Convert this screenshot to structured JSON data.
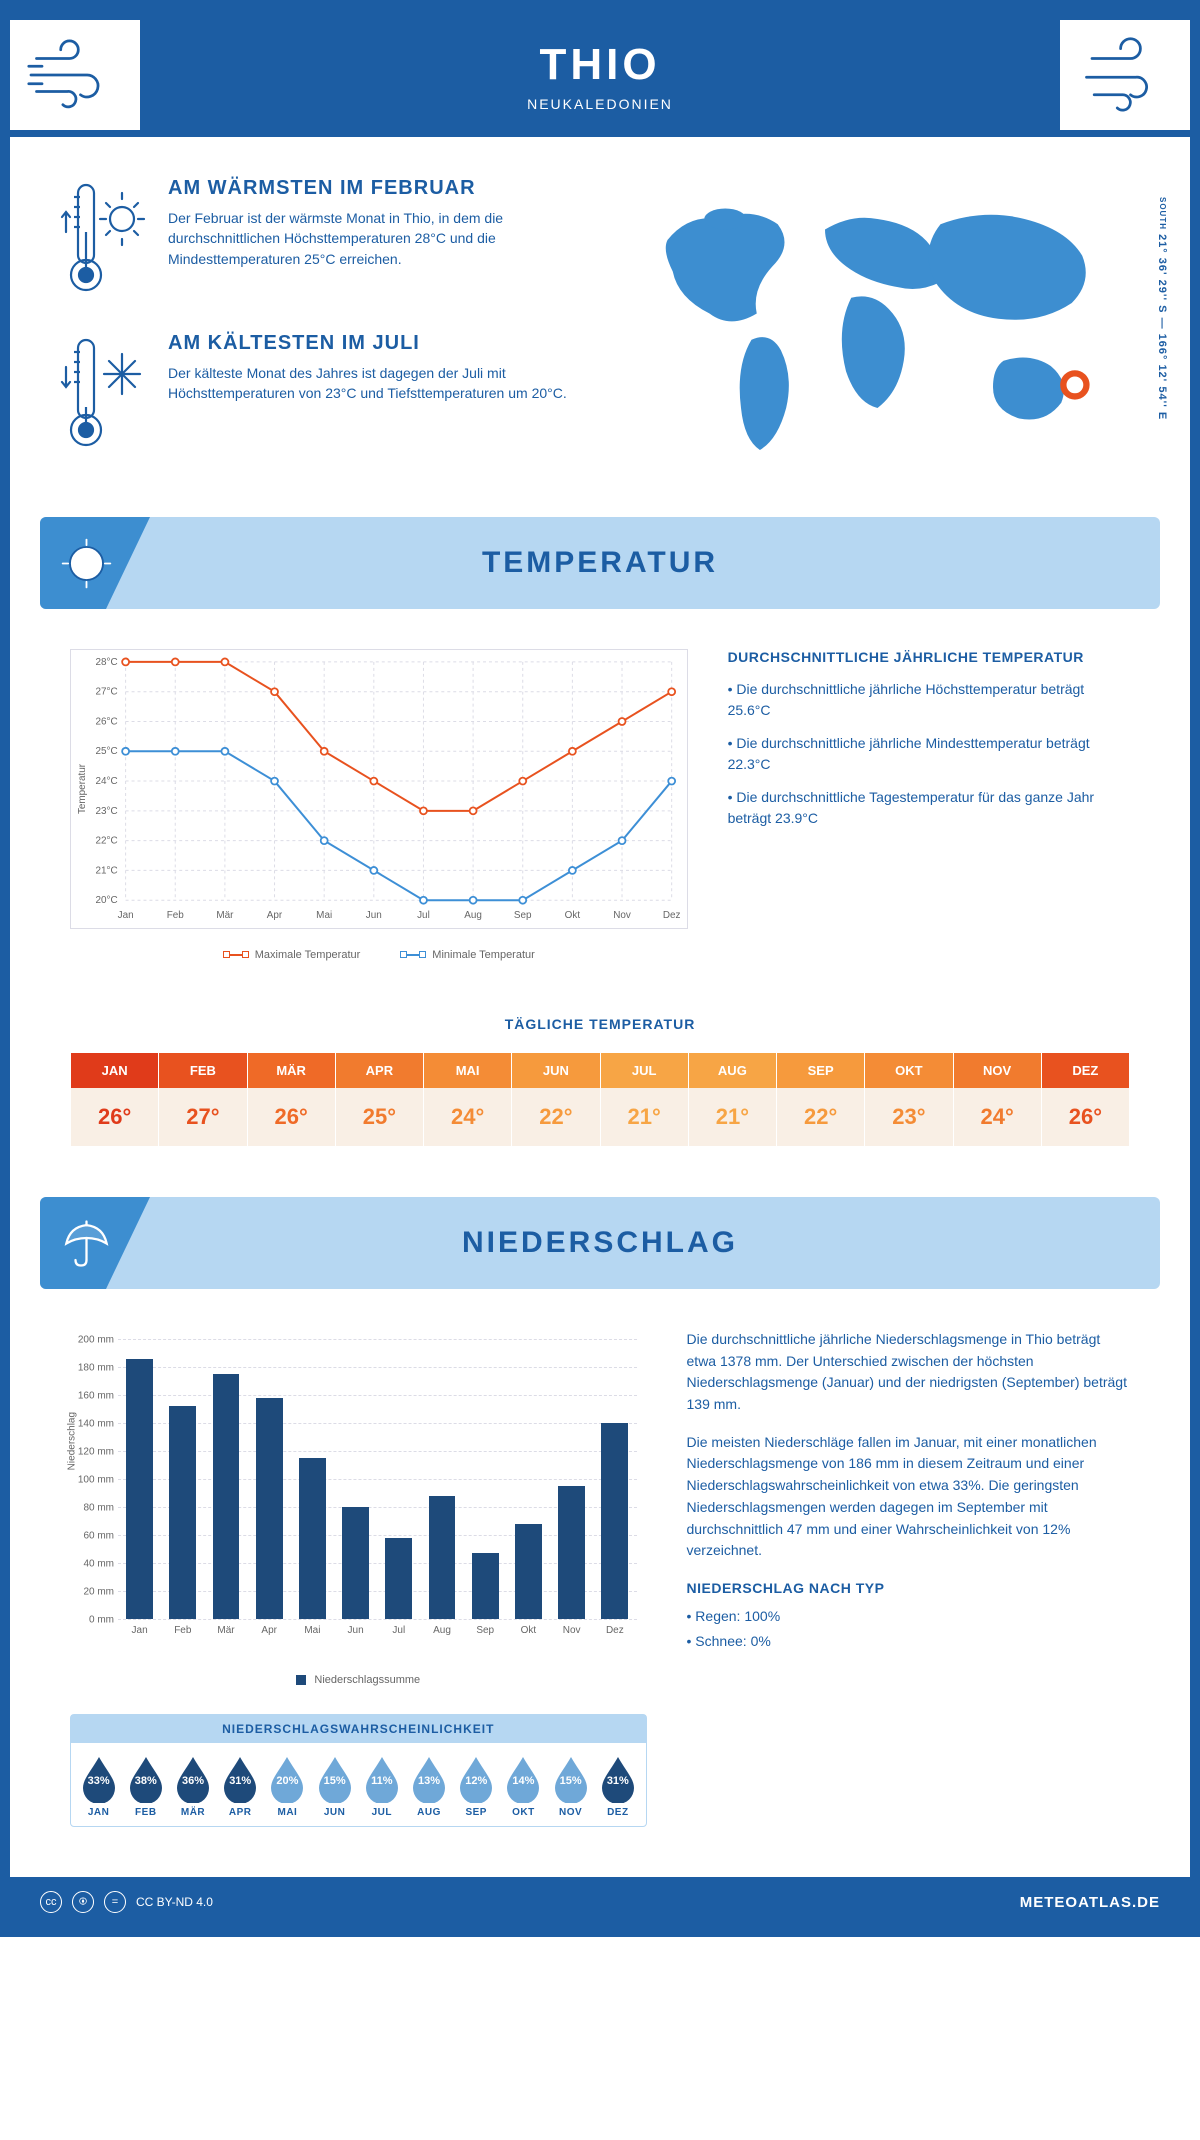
{
  "header": {
    "title": "THIO",
    "subtitle": "NEUKALEDONIEN"
  },
  "coords": {
    "south_label": "SOUTH",
    "text": "21° 36' 29'' S — 166° 12' 54'' E"
  },
  "facts": {
    "warm": {
      "title": "AM WÄRMSTEN IM FEBRUAR",
      "text": "Der Februar ist der wärmste Monat in Thio, in dem die durchschnittlichen Höchsttemperaturen 28°C und die Mindesttemperaturen 25°C erreichen."
    },
    "cold": {
      "title": "AM KÄLTESTEN IM JULI",
      "text": "Der kälteste Monat des Jahres ist dagegen der Juli mit Höchsttemperaturen von 23°C und Tiefsttemperaturen um 20°C."
    }
  },
  "banners": {
    "temp": "TEMPERATUR",
    "precip": "NIEDERSCHLAG"
  },
  "months": [
    "Jan",
    "Feb",
    "Mär",
    "Apr",
    "Mai",
    "Jun",
    "Jul",
    "Aug",
    "Sep",
    "Okt",
    "Nov",
    "Dez"
  ],
  "months_upper": [
    "JAN",
    "FEB",
    "MÄR",
    "APR",
    "MAI",
    "JUN",
    "JUL",
    "AUG",
    "SEP",
    "OKT",
    "NOV",
    "DEZ"
  ],
  "temp_chart": {
    "type": "line",
    "ylim": [
      20,
      28
    ],
    "ytick_step": 1,
    "y_unit": "°C",
    "yaxis_title": "Temperatur",
    "series": {
      "max": {
        "label": "Maximale Temperatur",
        "color": "#e8521f",
        "values": [
          28,
          28,
          28,
          27,
          25,
          24,
          23,
          23,
          24,
          25,
          26,
          27
        ]
      },
      "min": {
        "label": "Minimale Temperatur",
        "color": "#3d8fd6",
        "values": [
          25,
          25,
          25,
          24,
          22,
          21,
          20,
          20,
          20,
          21,
          22,
          24
        ]
      }
    },
    "grid_color": "#dcdce6",
    "background_color": "#ffffff"
  },
  "temp_desc": {
    "title": "DURCHSCHNITTLICHE JÄHRLICHE TEMPERATUR",
    "bullets": [
      "• Die durchschnittliche jährliche Höchsttemperatur beträgt 25.6°C",
      "• Die durchschnittliche jährliche Mindesttemperatur beträgt 22.3°C",
      "• Die durchschnittliche Tagestemperatur für das ganze Jahr beträgt 23.9°C"
    ]
  },
  "daily_temp": {
    "title": "TÄGLICHE TEMPERATUR",
    "values": [
      "26°",
      "27°",
      "26°",
      "25°",
      "24°",
      "22°",
      "21°",
      "21°",
      "22°",
      "23°",
      "24°",
      "26°"
    ],
    "header_colors": [
      "#e03b1a",
      "#e8521f",
      "#ef6a27",
      "#f17b2e",
      "#f48c36",
      "#f69a3d",
      "#f7a545",
      "#f7a545",
      "#f69a3d",
      "#f48c36",
      "#f17b2e",
      "#e8521f"
    ],
    "cell_bg": "#f9efe5",
    "cell_text_colors": [
      "#e03b1a",
      "#e8521f",
      "#ef6a27",
      "#f17b2e",
      "#f48c36",
      "#f69a3d",
      "#f7a545",
      "#f7a545",
      "#f69a3d",
      "#f48c36",
      "#f17b2e",
      "#e8521f"
    ]
  },
  "precip_chart": {
    "type": "bar",
    "yaxis_title": "Niederschlag",
    "ylim": [
      0,
      200
    ],
    "ytick_step": 20,
    "y_unit": " mm",
    "values": [
      186,
      152,
      175,
      158,
      115,
      80,
      58,
      88,
      47,
      68,
      95,
      140
    ],
    "bar_color": "#1e4a7a",
    "legend_label": "Niederschlagssumme",
    "grid_color": "#dcdce6"
  },
  "precip_desc": {
    "p1": "Die durchschnittliche jährliche Niederschlagsmenge in Thio beträgt etwa 1378 mm. Der Unterschied zwischen der höchsten Niederschlagsmenge (Januar) und der niedrigsten (September) beträgt 139 mm.",
    "p2": "Die meisten Niederschläge fallen im Januar, mit einer monatlichen Niederschlagsmenge von 186 mm in diesem Zeitraum und einer Niederschlagswahrscheinlichkeit von etwa 33%. Die geringsten Niederschlagsmengen werden dagegen im September mit durchschnittlich 47 mm und einer Wahrscheinlichkeit von 12% verzeichnet.",
    "type_title": "NIEDERSCHLAG NACH TYP",
    "type_bullets": [
      "• Regen: 100%",
      "• Schnee: 0%"
    ]
  },
  "prob": {
    "title": "NIEDERSCHLAGSWAHRSCHEINLICHKEIT",
    "values": [
      33,
      38,
      36,
      31,
      20,
      15,
      11,
      13,
      12,
      14,
      15,
      31
    ],
    "dark_color": "#1e4a7a",
    "light_color": "#6fa8d8",
    "threshold": 25
  },
  "footer": {
    "license": "CC BY-ND 4.0",
    "site": "METEOATLAS.DE"
  }
}
